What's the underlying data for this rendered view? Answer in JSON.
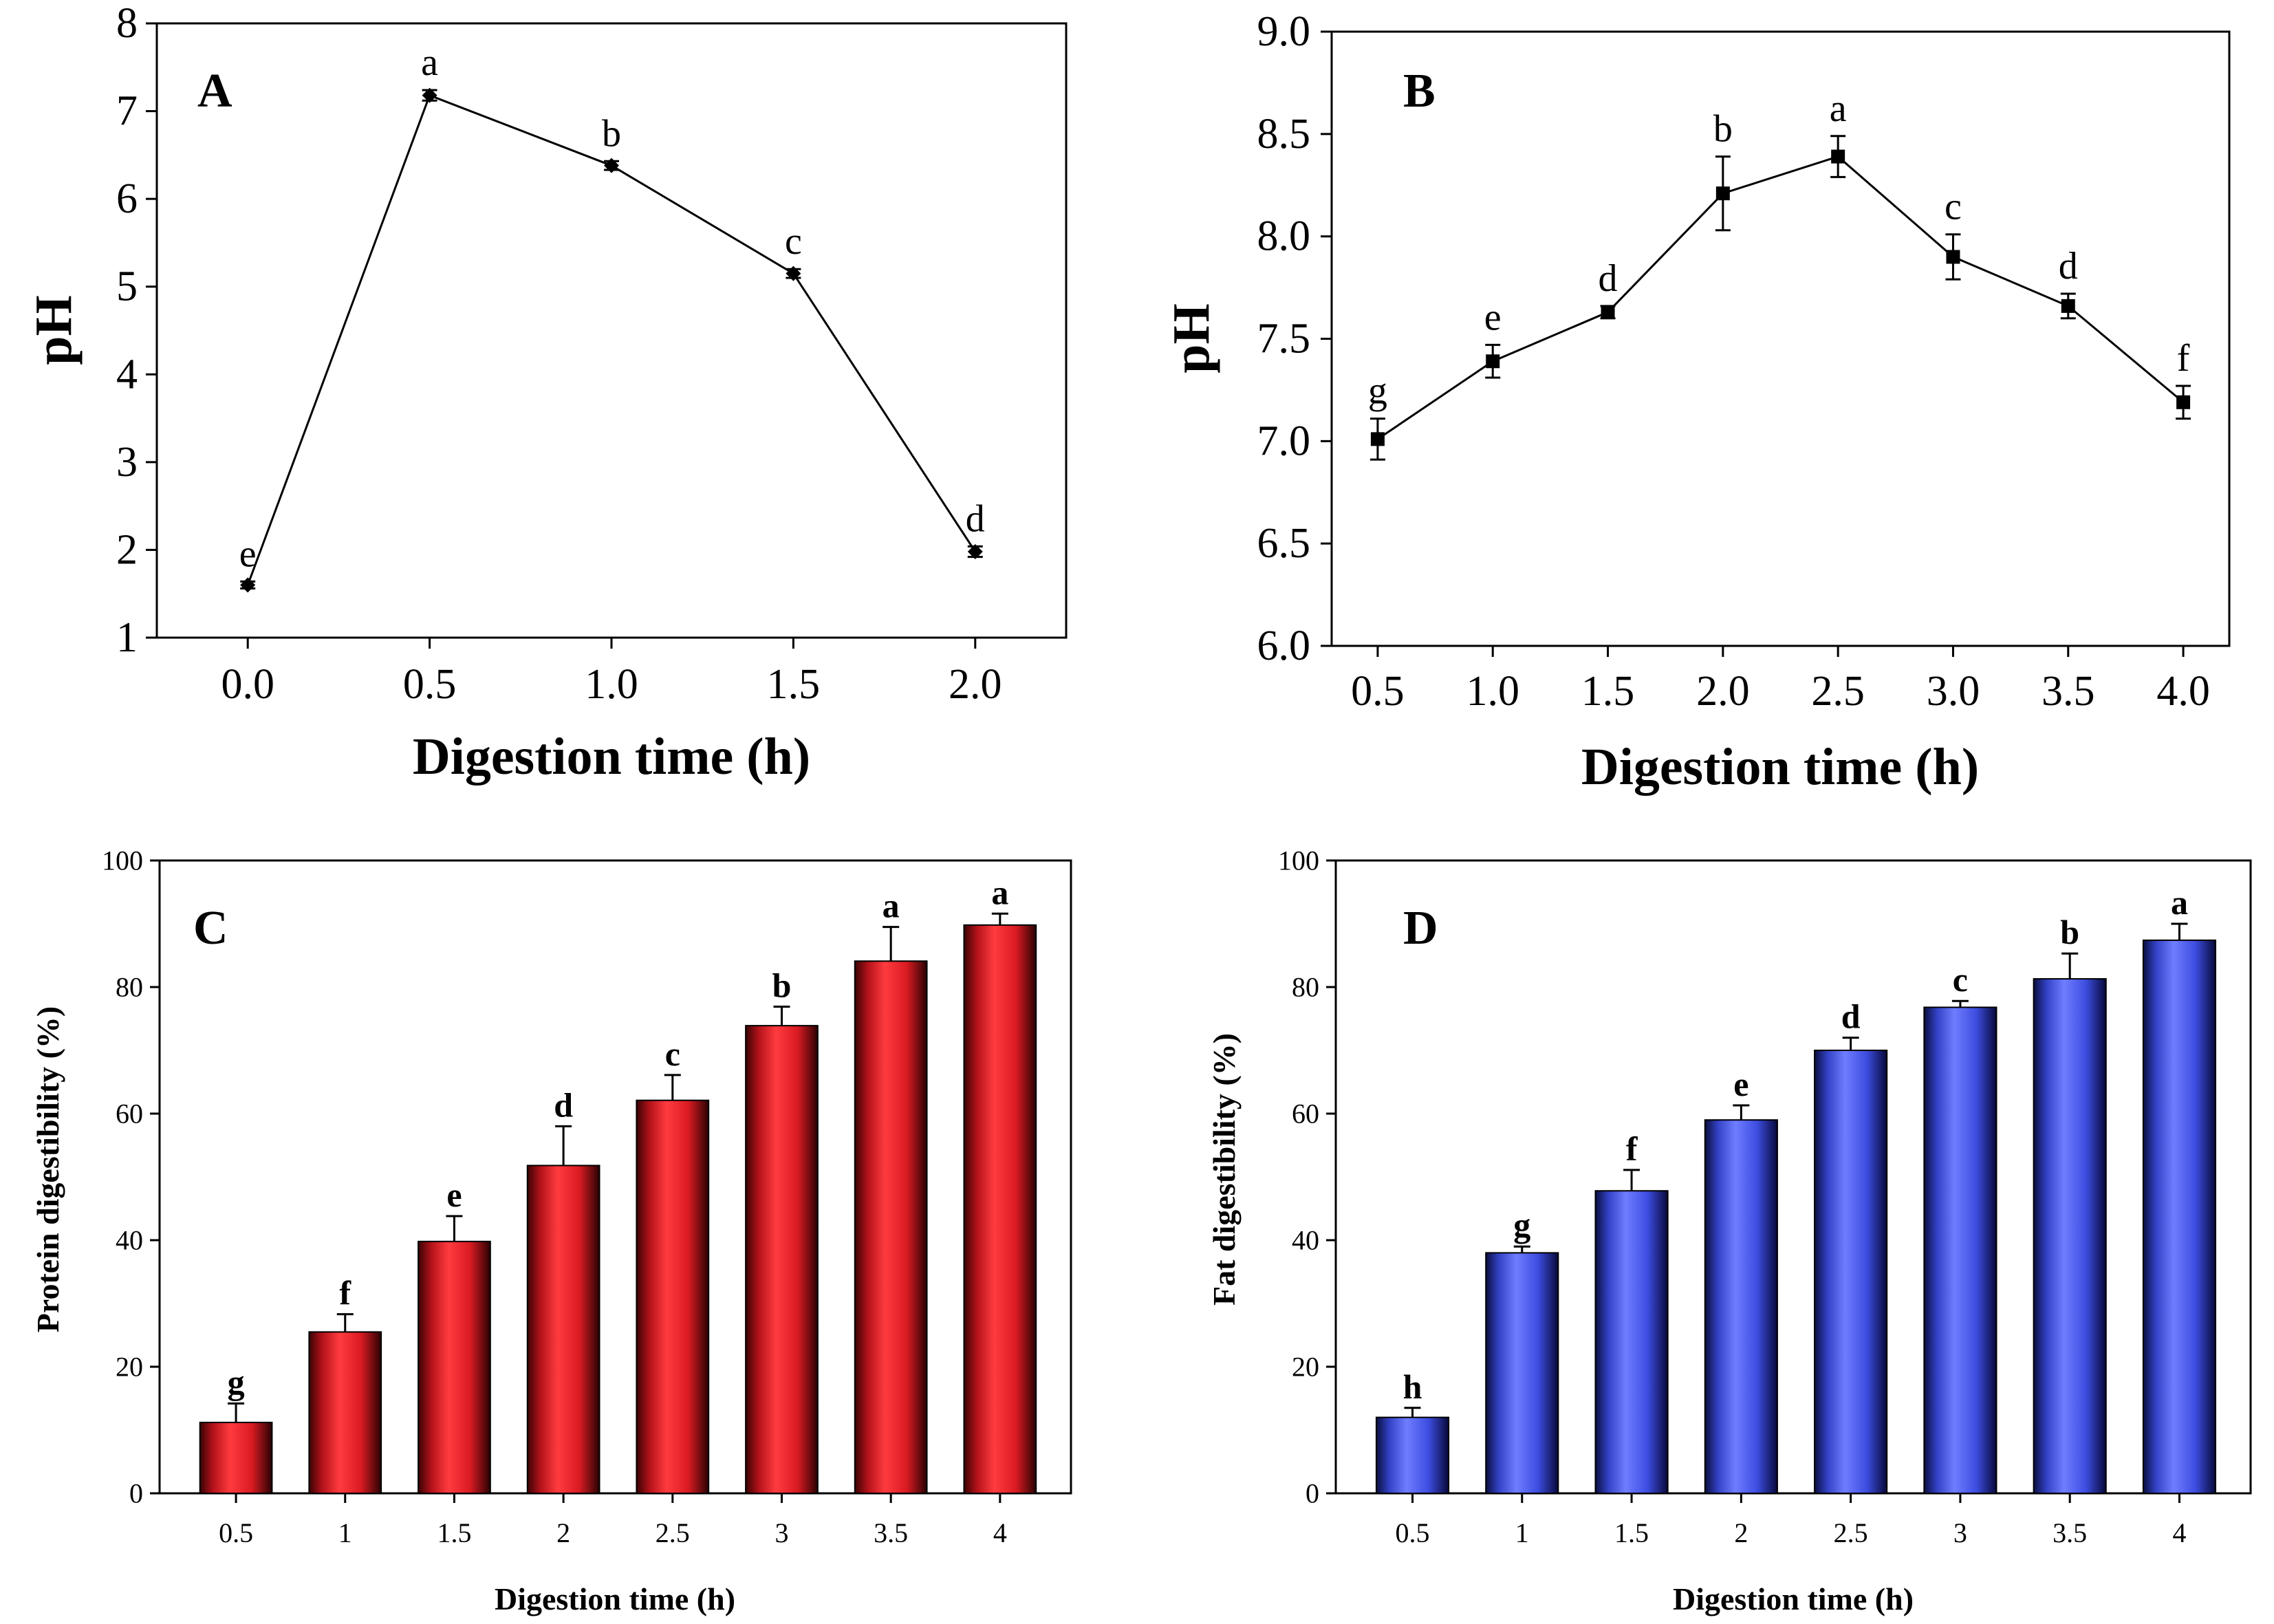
{
  "chart_data": [
    {
      "id": "A",
      "type": "line",
      "panel_label": "A",
      "xlabel": "Digestion time (h)",
      "ylabel": "pH",
      "x": [
        0.0,
        0.5,
        1.0,
        1.5,
        2.0
      ],
      "x_tick_labels": [
        "0.0",
        "0.5",
        "1.0",
        "1.5",
        "2.0"
      ],
      "values": [
        1.6,
        7.18,
        6.38,
        5.15,
        1.98
      ],
      "errors": [
        0.04,
        0.06,
        0.05,
        0.05,
        0.06
      ],
      "letters": [
        "e",
        "a",
        "b",
        "c",
        "d"
      ],
      "xlim": [
        -0.25,
        2.25
      ],
      "ylim": [
        1,
        8
      ],
      "y_ticks": [
        1,
        2,
        3,
        4,
        5,
        6,
        7,
        8
      ],
      "y_tick_labels": [
        "1",
        "2",
        "3",
        "4",
        "5",
        "6",
        "7",
        "8"
      ],
      "marker": "diamond"
    },
    {
      "id": "B",
      "type": "line",
      "panel_label": "B",
      "xlabel": "Digestion time (h)",
      "ylabel": "pH",
      "x": [
        0.5,
        1.0,
        1.5,
        2.0,
        2.5,
        3.0,
        3.5,
        4.0
      ],
      "x_tick_labels": [
        "0.5",
        "1.0",
        "1.5",
        "2.0",
        "2.5",
        "3.0",
        "3.5",
        "4.0"
      ],
      "values": [
        7.01,
        7.39,
        7.63,
        8.21,
        8.39,
        7.9,
        7.66,
        7.19
      ],
      "errors": [
        0.1,
        0.08,
        0.03,
        0.18,
        0.1,
        0.11,
        0.06,
        0.08
      ],
      "letters": [
        "g",
        "e",
        "d",
        "b",
        "a",
        "c",
        "d",
        "f"
      ],
      "xlim": [
        0.3,
        4.2
      ],
      "ylim": [
        6.0,
        9.0
      ],
      "y_ticks": [
        6.0,
        6.5,
        7.0,
        7.5,
        8.0,
        8.5,
        9.0
      ],
      "y_tick_labels": [
        "6.0",
        "6.5",
        "7.0",
        "7.5",
        "8.0",
        "8.5",
        "9.0"
      ],
      "marker": "square"
    },
    {
      "id": "C",
      "type": "bar",
      "panel_label": "C",
      "xlabel": "Digestion time (h)",
      "ylabel": "Protein digestibility (%)",
      "categories": [
        "0.5",
        "1",
        "1.5",
        "2",
        "2.5",
        "3",
        "3.5",
        "4"
      ],
      "values": [
        11.2,
        25.5,
        39.8,
        51.8,
        62.1,
        73.9,
        84.1,
        89.8
      ],
      "errors": [
        3.0,
        2.8,
        4.0,
        6.2,
        4.0,
        3.0,
        5.4,
        1.8
      ],
      "letters": [
        "g",
        "f",
        "e",
        "d",
        "c",
        "b",
        "a",
        "a"
      ],
      "ylim": [
        0,
        100
      ],
      "y_ticks": [
        0,
        20,
        40,
        60,
        80,
        100
      ],
      "y_tick_labels": [
        "0",
        "20",
        "40",
        "60",
        "80",
        "100"
      ],
      "color": "#e8272b"
    },
    {
      "id": "D",
      "type": "bar",
      "panel_label": "D",
      "xlabel": "Digestion time (h)",
      "ylabel": "Fat digestibility (%)",
      "categories": [
        "0.5",
        "1",
        "1.5",
        "2",
        "2.5",
        "3",
        "3.5",
        "4"
      ],
      "values": [
        12.0,
        38.0,
        47.8,
        59.0,
        70.0,
        76.8,
        81.3,
        87.4
      ],
      "errors": [
        1.5,
        1.0,
        3.3,
        2.3,
        2.0,
        1.0,
        4.0,
        2.6
      ],
      "letters": [
        "h",
        "g",
        "f",
        "e",
        "d",
        "c",
        "b",
        "a"
      ],
      "ylim": [
        0,
        100
      ],
      "y_ticks": [
        0,
        20,
        40,
        60,
        80,
        100
      ],
      "y_tick_labels": [
        "0",
        "20",
        "40",
        "60",
        "80",
        "100"
      ],
      "color": "#4b5cf0"
    }
  ]
}
